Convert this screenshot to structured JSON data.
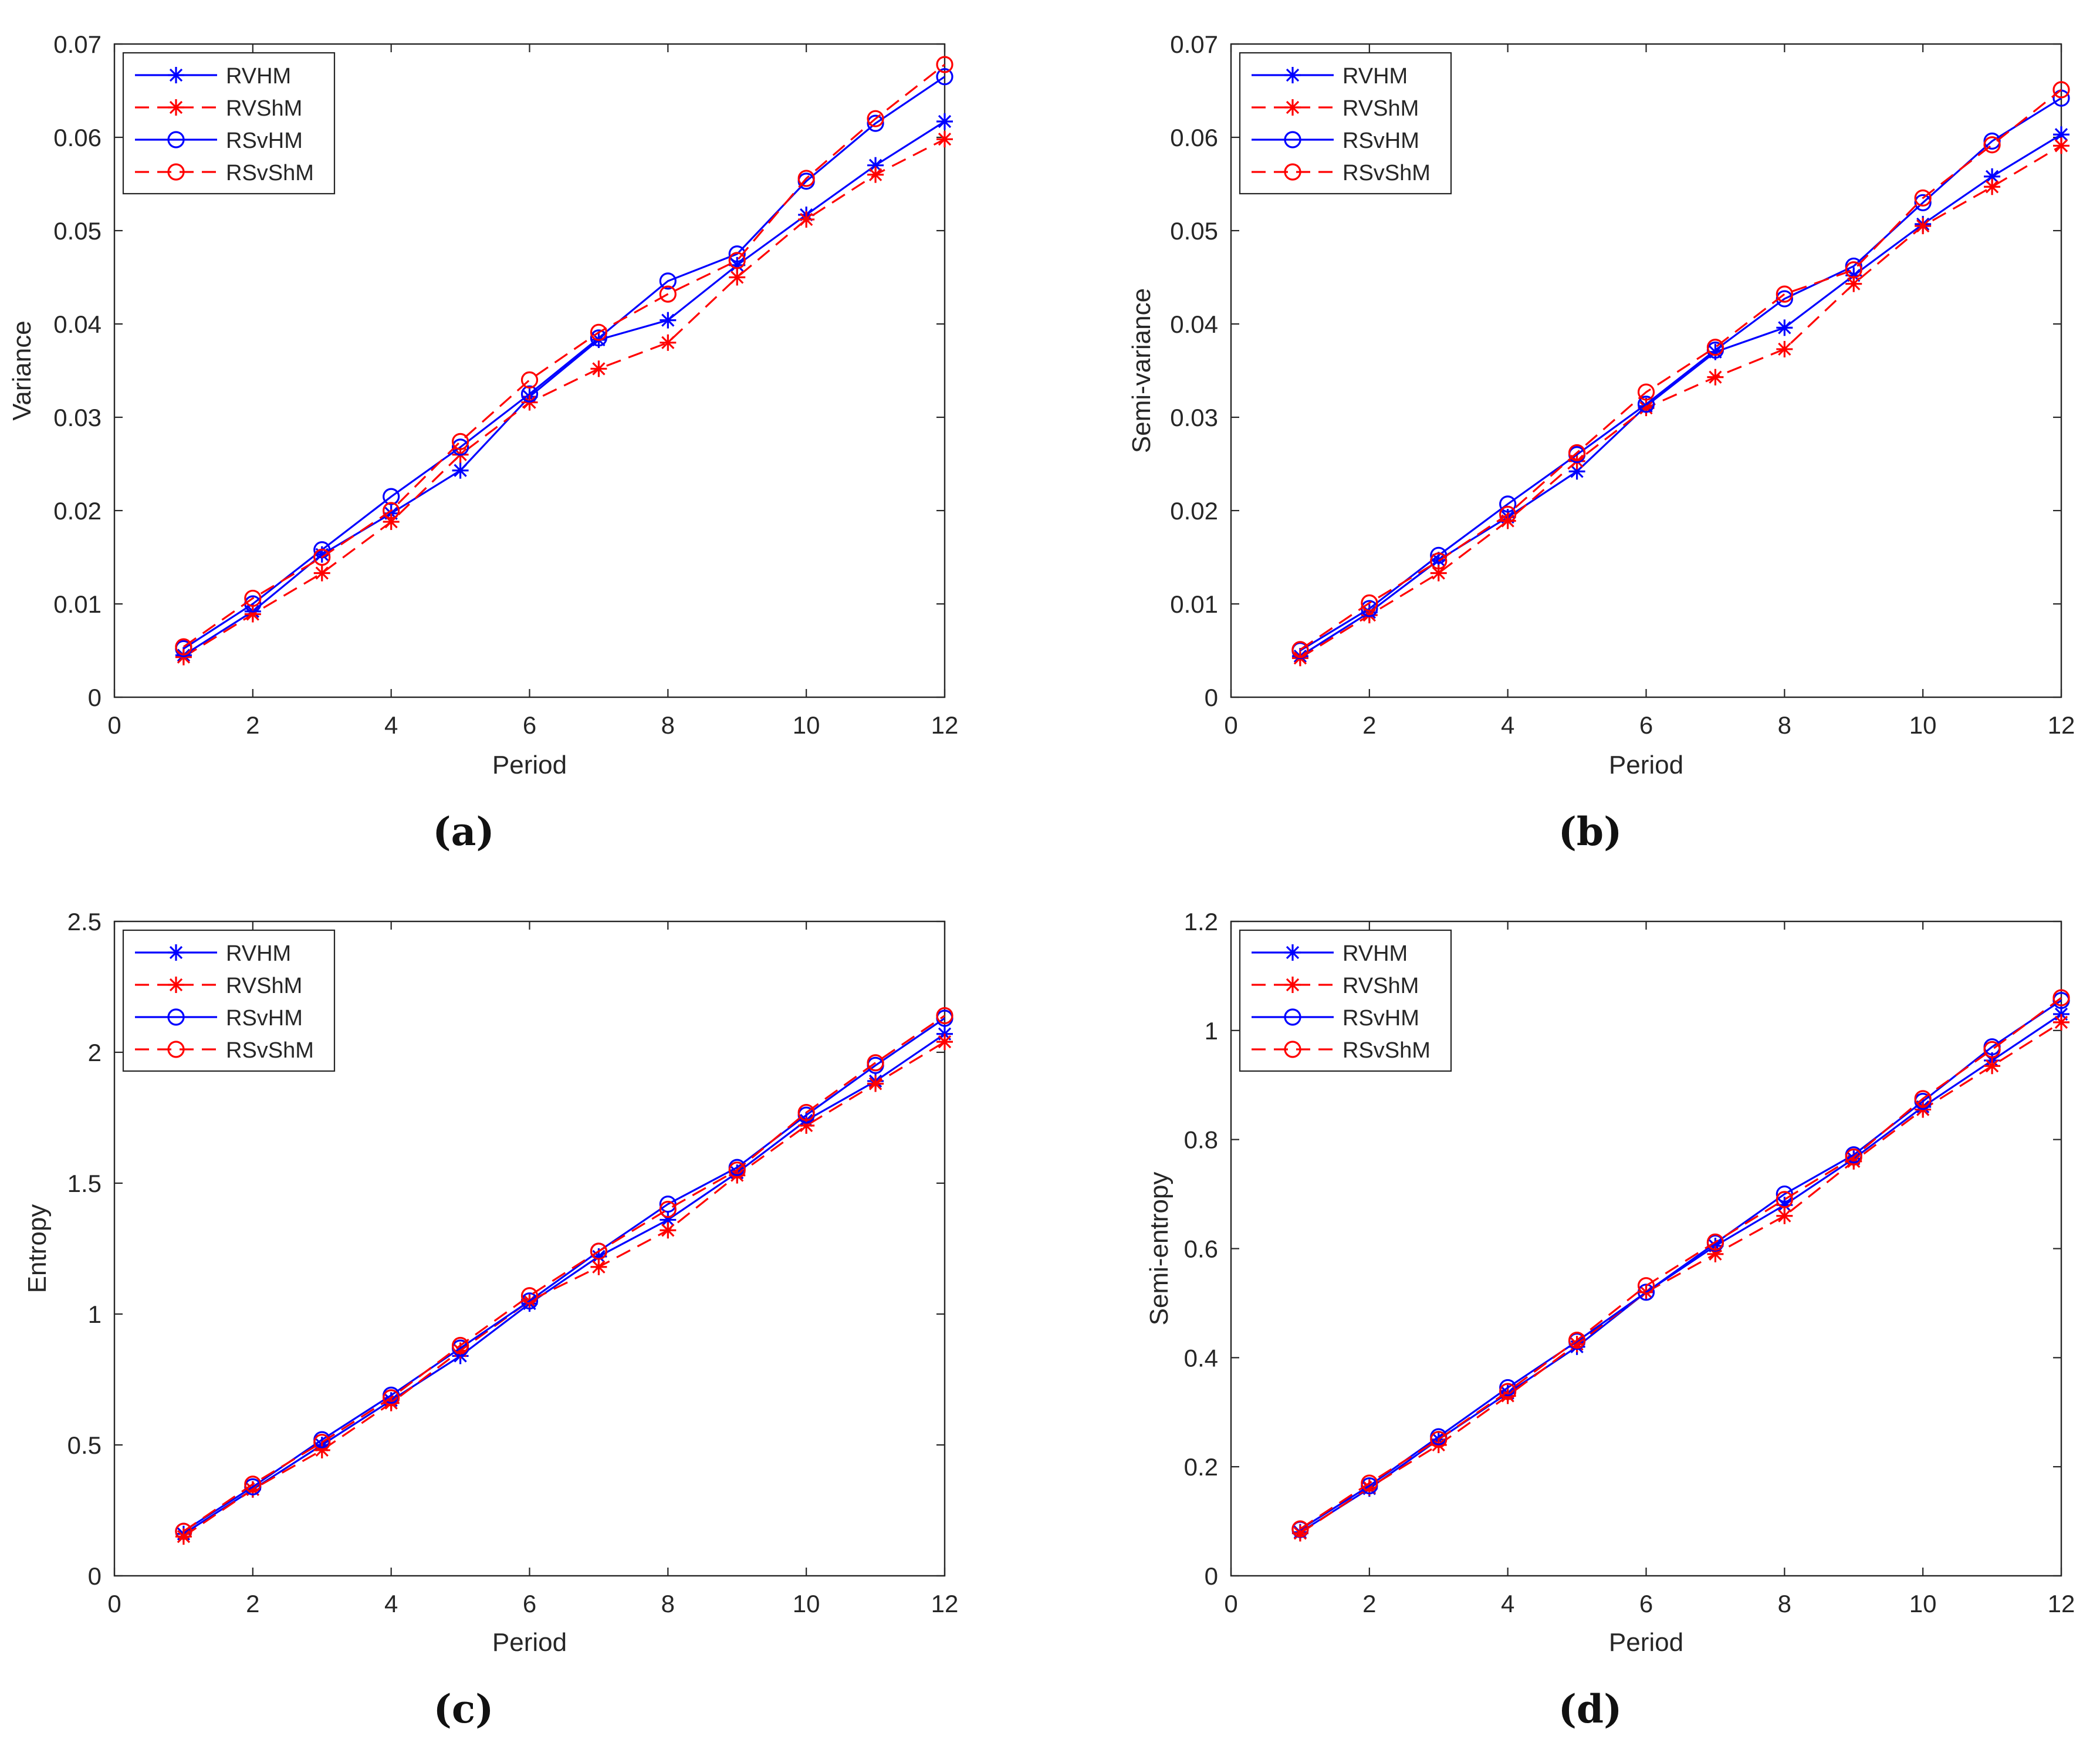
{
  "figure": {
    "colors": {
      "blue": "#0000ff",
      "red": "#ff0000",
      "axis": "#262626",
      "background": "#ffffff"
    }
  },
  "chart_data": [
    {
      "type": "line",
      "panel_label": "(a)",
      "xlabel": "Period",
      "ylabel": "Variance",
      "xlim": [
        0,
        12
      ],
      "ylim": [
        0,
        0.07
      ],
      "xticks": [
        0,
        2,
        4,
        6,
        8,
        10,
        12
      ],
      "xtick_labels": [
        "0",
        "2",
        "4",
        "6",
        "8",
        "10",
        "12"
      ],
      "yticks": [
        0,
        0.01,
        0.02,
        0.03,
        0.04,
        0.05,
        0.06,
        0.07
      ],
      "ytick_labels": [
        "0",
        "0.01",
        "0.02",
        "0.03",
        "0.04",
        "0.05",
        "0.06",
        "0.07"
      ],
      "legend_position": "top-left",
      "x": [
        1,
        2,
        3,
        4,
        5,
        6,
        7,
        8,
        9,
        10,
        11,
        12
      ],
      "series": [
        {
          "name": "RVHM",
          "color": "#0000ff",
          "line": "solid",
          "marker": "asterisk",
          "values": [
            0.0045,
            0.0092,
            0.0153,
            0.0197,
            0.0243,
            0.0322,
            0.0383,
            0.0404,
            0.0463,
            0.0517,
            0.057,
            0.0617
          ]
        },
        {
          "name": "RVShM",
          "color": "#ff0000",
          "line": "dashed",
          "marker": "asterisk",
          "values": [
            0.0043,
            0.0089,
            0.0133,
            0.0188,
            0.026,
            0.0316,
            0.0352,
            0.038,
            0.045,
            0.0512,
            0.056,
            0.0598
          ]
        },
        {
          "name": "RSvHM",
          "color": "#0000ff",
          "line": "solid",
          "marker": "circle",
          "values": [
            0.0052,
            0.01,
            0.0158,
            0.0215,
            0.0268,
            0.0325,
            0.0385,
            0.0446,
            0.0475,
            0.0553,
            0.0615,
            0.0665
          ]
        },
        {
          "name": "RSvShM",
          "color": "#ff0000",
          "line": "dashed",
          "marker": "circle",
          "values": [
            0.0054,
            0.0106,
            0.015,
            0.02,
            0.0274,
            0.034,
            0.0391,
            0.0432,
            0.0468,
            0.0556,
            0.062,
            0.0678
          ]
        }
      ]
    },
    {
      "type": "line",
      "panel_label": "(b)",
      "xlabel": "Period",
      "ylabel": "Semi-variance",
      "xlim": [
        0,
        12
      ],
      "ylim": [
        0,
        0.07
      ],
      "xticks": [
        0,
        2,
        4,
        6,
        8,
        10,
        12
      ],
      "xtick_labels": [
        "0",
        "2",
        "4",
        "6",
        "8",
        "10",
        "12"
      ],
      "yticks": [
        0,
        0.01,
        0.02,
        0.03,
        0.04,
        0.05,
        0.06,
        0.07
      ],
      "ytick_labels": [
        "0",
        "0.01",
        "0.02",
        "0.03",
        "0.04",
        "0.05",
        "0.06",
        "0.07"
      ],
      "legend_position": "top-left",
      "x": [
        1,
        2,
        3,
        4,
        5,
        6,
        7,
        8,
        9,
        10,
        11,
        12
      ],
      "series": [
        {
          "name": "RVHM",
          "color": "#0000ff",
          "line": "solid",
          "marker": "asterisk",
          "values": [
            0.0044,
            0.0091,
            0.0147,
            0.0193,
            0.0242,
            0.0312,
            0.037,
            0.0396,
            0.0452,
            0.0507,
            0.0558,
            0.0603
          ]
        },
        {
          "name": "RVShM",
          "color": "#ff0000",
          "line": "dashed",
          "marker": "asterisk",
          "values": [
            0.0042,
            0.0088,
            0.0133,
            0.0189,
            0.0253,
            0.031,
            0.0343,
            0.0373,
            0.0443,
            0.0505,
            0.0547,
            0.0591
          ]
        },
        {
          "name": "RSvHM",
          "color": "#0000ff",
          "line": "solid",
          "marker": "circle",
          "values": [
            0.005,
            0.0095,
            0.0152,
            0.0207,
            0.026,
            0.0314,
            0.0372,
            0.0427,
            0.0462,
            0.053,
            0.0596,
            0.0642
          ]
        },
        {
          "name": "RSvShM",
          "color": "#ff0000",
          "line": "dashed",
          "marker": "circle",
          "values": [
            0.0051,
            0.0101,
            0.0146,
            0.0196,
            0.0262,
            0.0327,
            0.0375,
            0.0432,
            0.0458,
            0.0535,
            0.0592,
            0.0651
          ]
        }
      ]
    },
    {
      "type": "line",
      "panel_label": "(c)",
      "xlabel": "Period",
      "ylabel": "Entropy",
      "xlim": [
        0,
        12
      ],
      "ylim": [
        0,
        2.5
      ],
      "xticks": [
        0,
        2,
        4,
        6,
        8,
        10,
        12
      ],
      "xtick_labels": [
        "0",
        "2",
        "4",
        "6",
        "8",
        "10",
        "12"
      ],
      "yticks": [
        0,
        0.5,
        1,
        1.5,
        2,
        2.5
      ],
      "ytick_labels": [
        "0",
        "0.5",
        "1",
        "1.5",
        "2",
        "2.5"
      ],
      "legend_position": "top-left",
      "x": [
        1,
        2,
        3,
        4,
        5,
        6,
        7,
        8,
        9,
        10,
        11,
        12
      ],
      "series": [
        {
          "name": "RVHM",
          "color": "#0000ff",
          "line": "solid",
          "marker": "asterisk",
          "values": [
            0.16,
            0.33,
            0.5,
            0.67,
            0.84,
            1.04,
            1.22,
            1.36,
            1.54,
            1.74,
            1.89,
            2.07
          ]
        },
        {
          "name": "RVShM",
          "color": "#ff0000",
          "line": "dashed",
          "marker": "asterisk",
          "values": [
            0.15,
            0.33,
            0.48,
            0.66,
            0.86,
            1.05,
            1.18,
            1.32,
            1.53,
            1.72,
            1.88,
            2.04
          ]
        },
        {
          "name": "RSvHM",
          "color": "#0000ff",
          "line": "solid",
          "marker": "circle",
          "values": [
            0.17,
            0.34,
            0.52,
            0.69,
            0.87,
            1.05,
            1.24,
            1.42,
            1.56,
            1.76,
            1.95,
            2.13
          ]
        },
        {
          "name": "RSvShM",
          "color": "#ff0000",
          "line": "dashed",
          "marker": "circle",
          "values": [
            0.17,
            0.35,
            0.51,
            0.68,
            0.88,
            1.07,
            1.24,
            1.4,
            1.55,
            1.77,
            1.96,
            2.14
          ]
        }
      ]
    },
    {
      "type": "line",
      "panel_label": "(d)",
      "xlabel": "Period",
      "ylabel": "Semi-entropy",
      "xlim": [
        0,
        12
      ],
      "ylim": [
        0,
        1.2
      ],
      "xticks": [
        0,
        2,
        4,
        6,
        8,
        10,
        12
      ],
      "xtick_labels": [
        "0",
        "2",
        "4",
        "6",
        "8",
        "10",
        "12"
      ],
      "yticks": [
        0,
        0.2,
        0.4,
        0.6,
        0.8,
        1,
        1.2
      ],
      "ytick_labels": [
        "0",
        "0.2",
        "0.4",
        "0.6",
        "0.8",
        "1",
        "1.2"
      ],
      "legend_position": "top-left",
      "x": [
        1,
        2,
        3,
        4,
        5,
        6,
        7,
        8,
        9,
        10,
        11,
        12
      ],
      "series": [
        {
          "name": "RVHM",
          "color": "#0000ff",
          "line": "solid",
          "marker": "asterisk",
          "values": [
            0.08,
            0.16,
            0.25,
            0.335,
            0.42,
            0.52,
            0.605,
            0.68,
            0.765,
            0.86,
            0.945,
            1.03
          ]
        },
        {
          "name": "RVShM",
          "color": "#ff0000",
          "line": "dashed",
          "marker": "asterisk",
          "values": [
            0.078,
            0.162,
            0.24,
            0.33,
            0.425,
            0.52,
            0.59,
            0.66,
            0.76,
            0.855,
            0.935,
            1.015
          ]
        },
        {
          "name": "RSvHM",
          "color": "#0000ff",
          "line": "solid",
          "marker": "circle",
          "values": [
            0.085,
            0.165,
            0.255,
            0.345,
            0.43,
            0.52,
            0.61,
            0.7,
            0.772,
            0.87,
            0.97,
            1.055
          ]
        },
        {
          "name": "RSvShM",
          "color": "#ff0000",
          "line": "dashed",
          "marker": "circle",
          "values": [
            0.086,
            0.17,
            0.25,
            0.338,
            0.432,
            0.532,
            0.612,
            0.69,
            0.768,
            0.875,
            0.965,
            1.06
          ]
        }
      ]
    }
  ]
}
